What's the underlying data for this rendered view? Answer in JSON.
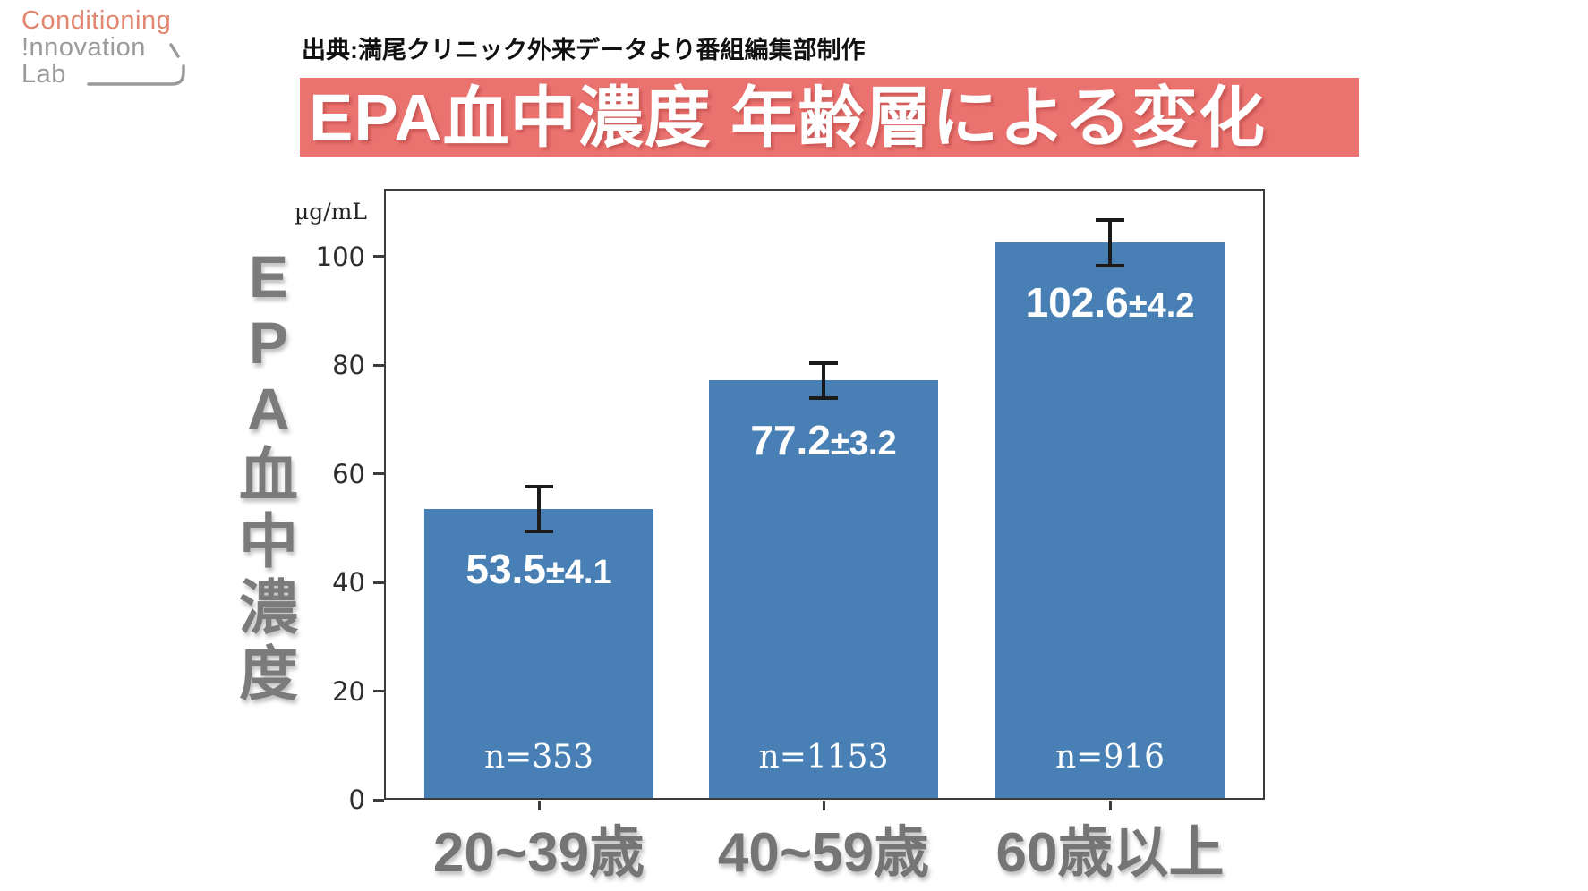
{
  "logo": {
    "line1": "Conditioning",
    "line2": "!nnovation",
    "line3": "Lab"
  },
  "source_note": "出典:満尾クリニック外来データより番組編集部制作",
  "title": "EPA血中濃度 年齢層による変化",
  "chart_data": {
    "type": "bar",
    "title": "EPA血中濃度 年齢層による変化",
    "unit_label": "µg/mL",
    "ylabel": "EPA血中濃度",
    "xlabel": "",
    "categories": [
      "20~39歳",
      "40~59歳",
      "60歳以上"
    ],
    "series": [
      {
        "name": "EPA血中濃度",
        "values": [
          53.5,
          77.2,
          102.6
        ],
        "errors": [
          4.1,
          3.2,
          4.2
        ],
        "sample_sizes": [
          353,
          1153,
          916
        ]
      }
    ],
    "bar_labels": [
      "53.5±4.1",
      "77.2±3.2",
      "102.6±4.2"
    ],
    "n_labels": [
      "n=353",
      "n=1153",
      "n=916"
    ],
    "yticks": [
      0,
      20,
      40,
      60,
      80,
      100
    ],
    "ylim": [
      0,
      112.5
    ],
    "grid": false,
    "legend": false,
    "error_bars": true,
    "colors": {
      "bar": "#4880b5",
      "error": "#1b1b1b",
      "axis": "#3c3c3c",
      "tick_text": "#2e2e2e",
      "category_text": "#757575",
      "ylabel_text": "#7b7b7b",
      "value_text": "#ffffff"
    }
  },
  "theme": {
    "banner_bg": "#ea7370",
    "banner_text": "#ffffff",
    "logo_coral": "#e2876f",
    "logo_gray": "#9a9a9a"
  }
}
